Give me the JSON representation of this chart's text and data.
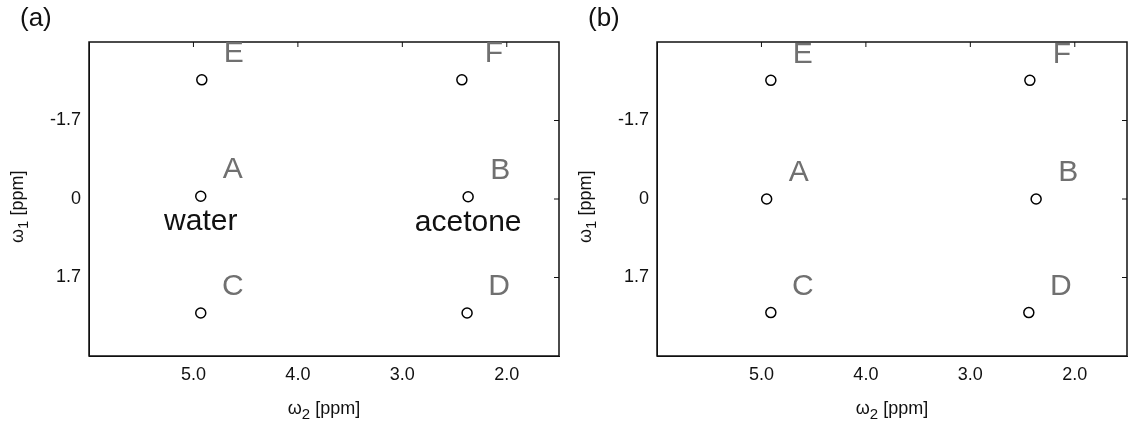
{
  "chart_data": [
    {
      "type": "scatter",
      "title": "(a)",
      "xlabel": "ω$_{2}$ [ppm]",
      "ylabel": "ω$_{1}$ [ppm]",
      "marker": "circle",
      "xlim": [
        6.0,
        1.5
      ],
      "ylim": [
        3.4,
        -3.4
      ],
      "xticks": [
        {
          "value": 5,
          "label": "5.0"
        },
        {
          "value": 4,
          "label": "4.0"
        },
        {
          "value": 3,
          "label": "3.0"
        },
        {
          "value": 2,
          "label": "2.0"
        }
      ],
      "yticks": [
        -1.7,
        0,
        1.7
      ],
      "series": [
        {
          "color": "#000000",
          "x": [
            4.92,
            4.93,
            4.93,
            2.43,
            2.37,
            2.38
          ],
          "values": [
            -2.58,
            -0.06,
            2.47,
            -2.58,
            -0.05,
            2.47
          ]
        }
      ],
      "annotations": [
        {
          "text": "E",
          "x": 4.92,
          "y": -2.58
        },
        {
          "text": "A",
          "x": 4.93,
          "y": -0.06
        },
        {
          "text": "C",
          "x": 4.93,
          "y": 2.47
        },
        {
          "text": "F",
          "x": 2.43,
          "y": -2.58
        },
        {
          "text": "B",
          "x": 2.37,
          "y": -0.05
        },
        {
          "text": "D",
          "x": 2.38,
          "y": 2.47
        },
        {
          "text": "water",
          "x": 4.93,
          "y": -0.06
        },
        {
          "text": "acetone",
          "x": 2.37,
          "y": -0.05
        }
      ]
    },
    {
      "type": "scatter",
      "title": "(b)",
      "xlabel": "ω$_{2}$ [ppm]",
      "ylabel": "ω$_{1}$ [ppm]",
      "marker": "circle",
      "xlim": [
        6.0,
        1.5
      ],
      "ylim": [
        3.4,
        -3.4
      ],
      "xticks": [
        {
          "value": 5,
          "label": "5.0"
        },
        {
          "value": 4,
          "label": "4.0"
        },
        {
          "value": 3,
          "label": "3.0"
        },
        {
          "value": 2,
          "label": "2.0"
        }
      ],
      "yticks": [
        -1.7,
        0,
        1.7
      ],
      "series": [
        {
          "color": "#000000",
          "x": [
            4.91,
            4.95,
            4.91,
            2.43,
            2.37,
            2.44
          ],
          "values": [
            -2.57,
            0.0,
            2.46,
            -2.57,
            0.0,
            2.46
          ]
        }
      ],
      "annotations": [
        {
          "text": "E",
          "x": 4.91,
          "y": -2.57
        },
        {
          "text": "A",
          "x": 4.95,
          "y": 0.0
        },
        {
          "text": "C",
          "x": 4.91,
          "y": 2.46
        },
        {
          "text": "F",
          "x": 2.43,
          "y": -2.57
        },
        {
          "text": "B",
          "x": 2.37,
          "y": 0.0
        },
        {
          "text": "D",
          "x": 2.44,
          "y": 2.46
        }
      ]
    }
  ]
}
